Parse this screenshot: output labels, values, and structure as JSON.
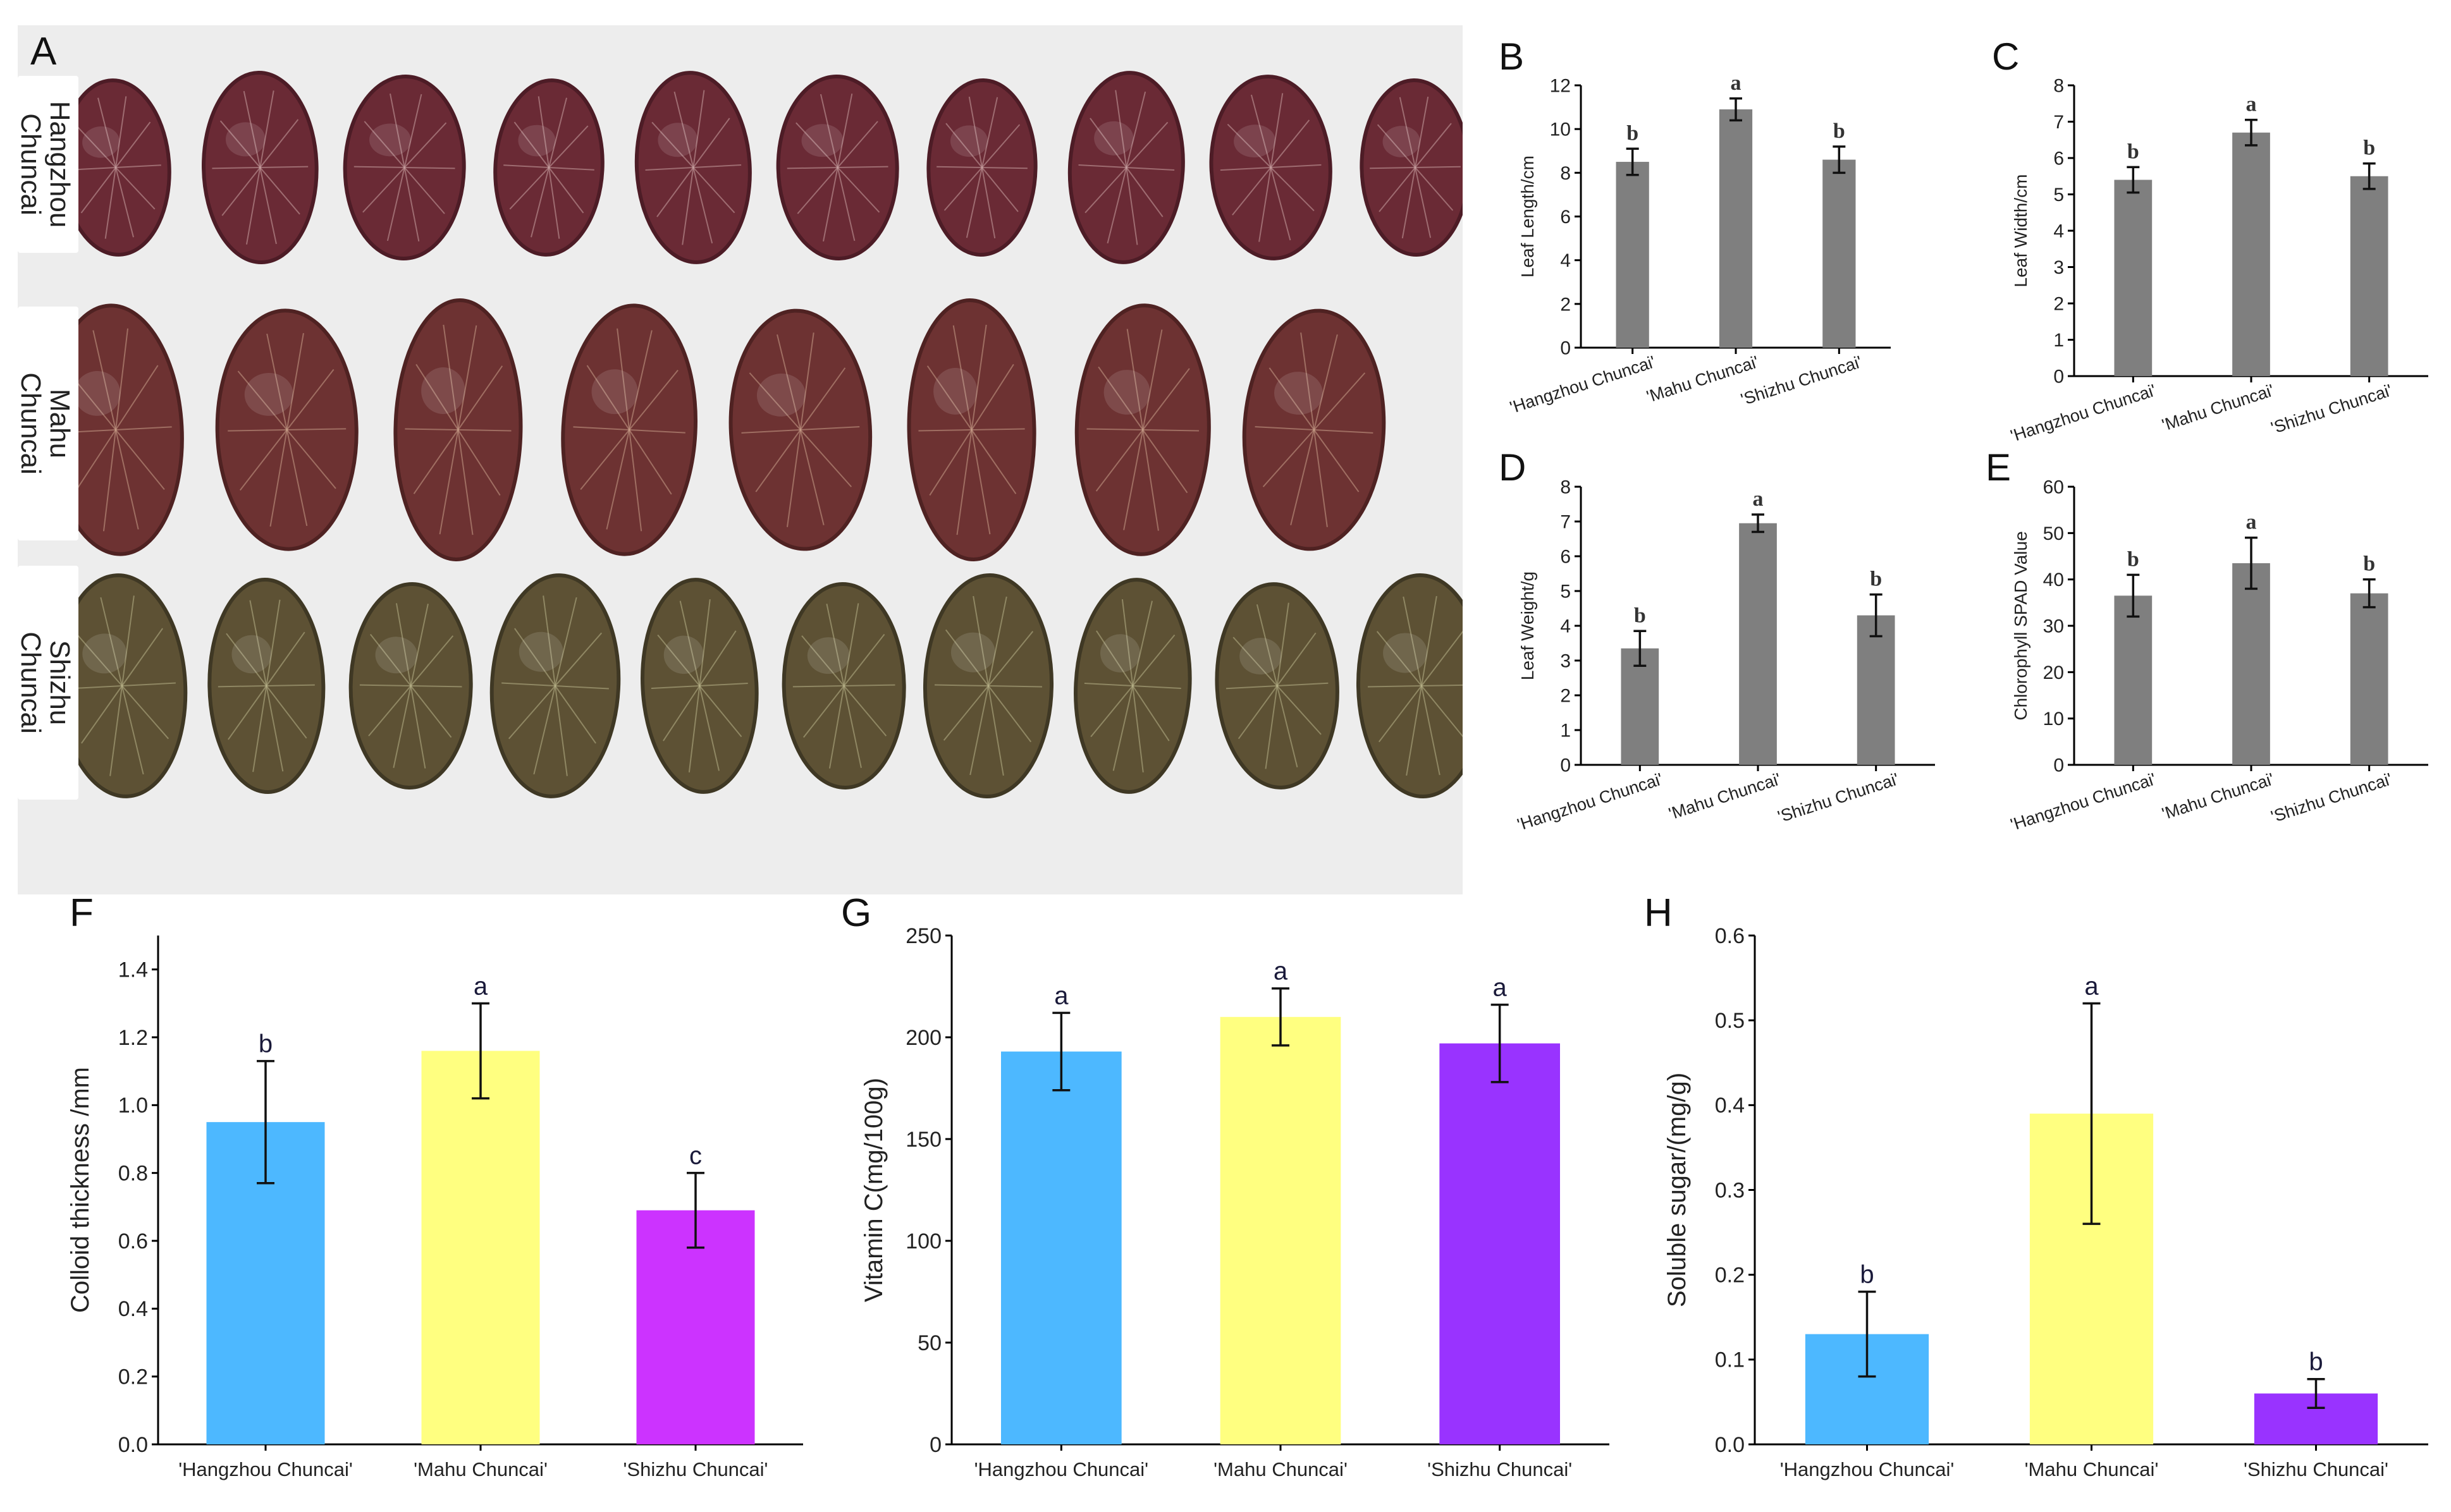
{
  "photo": {
    "panel_label": "A",
    "rows": [
      {
        "label_line1": "Hangzhou",
        "label_line2": "Chuncai",
        "leaf_count": 10,
        "leaf_color": "#6a2a35",
        "leaf_edge": "#4d1c26",
        "vein_color": "#caa3a3"
      },
      {
        "label_line1": "Mahu",
        "label_line2": "Chuncai",
        "leaf_count": 8,
        "leaf_color": "#6d3232",
        "leaf_edge": "#4f2222",
        "vein_color": "#c9a08a"
      },
      {
        "label_line1": "Shizhu",
        "label_line2": "Chuncai",
        "leaf_count": 10,
        "leaf_color": "#5d5134",
        "leaf_edge": "#3f3824",
        "vein_color": "#b9b48a"
      }
    ]
  },
  "chart_data": [
    {
      "panel": "B",
      "type": "bar",
      "style": "small",
      "categories": [
        "'Hangzhou Chuncai'",
        "'Mahu Chuncai'",
        "'Shizhu Chuncai'"
      ],
      "values": [
        8.5,
        10.9,
        8.6
      ],
      "errors": [
        0.6,
        0.5,
        0.6
      ],
      "significance": [
        "b",
        "a",
        "b"
      ],
      "ylabel": "Leaf Length/cm",
      "ylim": [
        0,
        12
      ],
      "yticks": [
        0,
        2,
        4,
        6,
        8,
        10,
        12
      ],
      "bar_colors": [
        "#7f7f7f",
        "#7f7f7f",
        "#7f7f7f"
      ]
    },
    {
      "panel": "C",
      "type": "bar",
      "style": "small",
      "categories": [
        "'Hangzhou Chuncai'",
        "'Mahu Chuncai'",
        "'Shizhu Chuncai'"
      ],
      "values": [
        5.4,
        6.7,
        5.5
      ],
      "errors": [
        0.35,
        0.35,
        0.35
      ],
      "significance": [
        "b",
        "a",
        "b"
      ],
      "ylabel": "Leaf Width/cm",
      "ylim": [
        0,
        8
      ],
      "yticks": [
        0,
        1,
        2,
        3,
        4,
        5,
        6,
        7,
        8
      ],
      "bar_colors": [
        "#7f7f7f",
        "#7f7f7f",
        "#7f7f7f"
      ]
    },
    {
      "panel": "D",
      "type": "bar",
      "style": "small",
      "categories": [
        "'Hangzhou Chuncai'",
        "'Mahu Chuncai'",
        "'Shizhu Chuncai'"
      ],
      "values": [
        3.35,
        6.95,
        4.3
      ],
      "errors": [
        0.5,
        0.25,
        0.6
      ],
      "significance": [
        "b",
        "a",
        "b"
      ],
      "ylabel": "Leaf Weight/g",
      "ylim": [
        0,
        8
      ],
      "yticks": [
        0,
        1,
        2,
        3,
        4,
        5,
        6,
        7,
        8
      ],
      "bar_colors": [
        "#7f7f7f",
        "#7f7f7f",
        "#7f7f7f"
      ]
    },
    {
      "panel": "E",
      "type": "bar",
      "style": "small",
      "categories": [
        "'Hangzhou Chuncai'",
        "'Mahu Chuncai'",
        "'Shizhu Chuncai'"
      ],
      "values": [
        36.5,
        43.5,
        37.0
      ],
      "errors": [
        4.5,
        5.5,
        3.0
      ],
      "significance": [
        "b",
        "a",
        "b"
      ],
      "ylabel": "Chlorophyll SPAD Value",
      "ylim": [
        0,
        60
      ],
      "yticks": [
        0,
        10,
        20,
        30,
        40,
        50,
        60
      ],
      "bar_colors": [
        "#7f7f7f",
        "#7f7f7f",
        "#7f7f7f"
      ]
    },
    {
      "panel": "F",
      "type": "bar",
      "style": "large",
      "categories": [
        "'Hangzhou Chuncai'",
        "'Mahu Chuncai'",
        "'Shizhu Chuncai'"
      ],
      "values": [
        0.95,
        1.16,
        0.69
      ],
      "errors": [
        0.18,
        0.14,
        0.11
      ],
      "significance": [
        "b",
        "a",
        "c"
      ],
      "ylabel": "Colloid thickness /mm",
      "ylim": [
        0,
        1.5
      ],
      "yticks": [
        "0.0",
        "0.2",
        "0.4",
        "0.6",
        "0.8",
        "1.0",
        "1.2",
        "1.4"
      ],
      "bar_colors": [
        "#4db8ff",
        "#ffff80",
        "#cc33ff"
      ]
    },
    {
      "panel": "G",
      "type": "bar",
      "style": "large",
      "categories": [
        "'Hangzhou Chuncai'",
        "'Mahu Chuncai'",
        "'Shizhu Chuncai'"
      ],
      "values": [
        193,
        210,
        197
      ],
      "errors": [
        19,
        14,
        19
      ],
      "significance": [
        "a",
        "a",
        "a"
      ],
      "ylabel": "Vitamin C(mg/100g)",
      "ylim": [
        0,
        250
      ],
      "yticks": [
        "0",
        "50",
        "100",
        "150",
        "200",
        "250"
      ],
      "bar_colors": [
        "#4db8ff",
        "#ffff80",
        "#9933ff"
      ]
    },
    {
      "panel": "H",
      "type": "bar",
      "style": "large",
      "categories": [
        "'Hangzhou Chuncai'",
        "'Mahu Chuncai'",
        "'Shizhu Chuncai'"
      ],
      "values": [
        0.13,
        0.39,
        0.06
      ],
      "errors": [
        0.05,
        0.13,
        0.017
      ],
      "significance": [
        "b",
        "a",
        "b"
      ],
      "ylabel": "Soluble sugar/(mg/g)",
      "ylim": [
        0,
        0.6
      ],
      "yticks": [
        "0.0",
        "0.1",
        "0.2",
        "0.3",
        "0.4",
        "0.5",
        "0.6"
      ],
      "bar_colors": [
        "#4db8ff",
        "#ffff80",
        "#9933ff"
      ]
    }
  ]
}
